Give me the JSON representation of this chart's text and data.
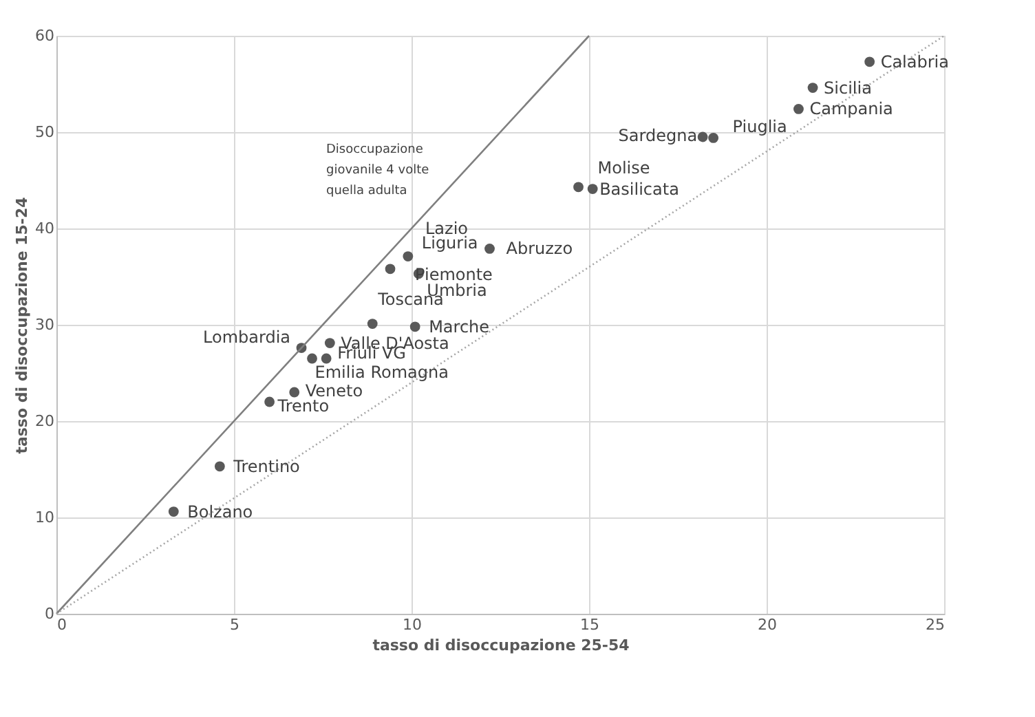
{
  "chart_data": {
    "type": "scatter",
    "xlabel": "tasso di disoccupazione 25-54",
    "ylabel": "tasso di disoccupazione 15-24",
    "xlim": [
      0,
      25
    ],
    "xticks": [
      0,
      5,
      10,
      15,
      20,
      25
    ],
    "ylim": [
      0,
      60
    ],
    "yticks": [
      0,
      10,
      20,
      30,
      40,
      50,
      60
    ],
    "grid": true,
    "series": [
      {
        "marker": "circle",
        "color": "#595959",
        "x": [
          22.9,
          21.3,
          20.9,
          18.2,
          18.5,
          14.7,
          15.1,
          12.2,
          10.3,
          9.9,
          9.4,
          10.2,
          8.9,
          10.1,
          6.9,
          7.7,
          7.6,
          7.2,
          6.7,
          6.0,
          4.6,
          3.3
        ],
        "values": [
          57.3,
          54.6,
          52.4,
          49.5,
          49.4,
          44.3,
          44.1,
          37.9,
          null,
          37.1,
          35.8,
          35.3,
          30.1,
          29.8,
          27.6,
          28.1,
          26.5,
          26.5,
          23.0,
          22.0,
          15.3,
          10.6
        ]
      },
      {
        "type": "line",
        "line_style": "solid",
        "color": "#7f7f7f",
        "x": [
          0,
          15
        ],
        "values": [
          0,
          60
        ]
      },
      {
        "type": "line",
        "line_style": "dotted",
        "color": "#a6a6a6",
        "x": [
          0,
          25
        ],
        "values": [
          0,
          60
        ]
      }
    ],
    "annotations": [
      {
        "text": "Calabria",
        "x": 22.9,
        "y": 57.3
      },
      {
        "text": "Sicilia",
        "x": 21.3,
        "y": 54.6
      },
      {
        "text": "Campania",
        "x": 20.9,
        "y": 52.4
      },
      {
        "text": "Sardegna",
        "x": 18.2,
        "y": 49.5
      },
      {
        "text": "Piuglia",
        "x": 18.5,
        "y": 49.4
      },
      {
        "text": "Molise",
        "x": 14.7,
        "y": 44.3
      },
      {
        "text": "Basilicata",
        "x": 15.1,
        "y": 44.1
      },
      {
        "text": "Abruzzo",
        "x": 12.2,
        "y": 37.9
      },
      "Lazio",
      {
        "text": "Liguria",
        "x": 9.9,
        "y": 37.1
      },
      {
        "text": "Piemonte",
        "x": 9.4,
        "y": 35.8
      },
      {
        "text": "Umbria",
        "x": 10.2,
        "y": 35.3
      },
      {
        "text": "Toscana",
        "x": 8.9,
        "y": 30.1
      },
      {
        "text": "Marche",
        "x": 10.1,
        "y": 29.8
      },
      {
        "text": "Lombardia",
        "x": 6.9,
        "y": 27.6
      },
      {
        "text": "Valle D'Aosta",
        "x": 7.7,
        "y": 28.1
      },
      {
        "text": "Friuli VG",
        "x": 7.6,
        "y": 26.5
      },
      {
        "text": "Emilia Romagna",
        "x": 7.2,
        "y": 26.5
      },
      {
        "text": "Veneto",
        "x": 6.7,
        "y": 23.0
      },
      {
        "text": "Trento",
        "x": 6.0,
        "y": 22.0
      },
      {
        "text": "Trentino",
        "x": 4.6,
        "y": 15.3
      },
      {
        "text": "Bolzano",
        "x": 3.3,
        "y": 10.6
      },
      "Disoccupazione\ngiovanile 4 volte\nquella adulta"
    ]
  }
}
